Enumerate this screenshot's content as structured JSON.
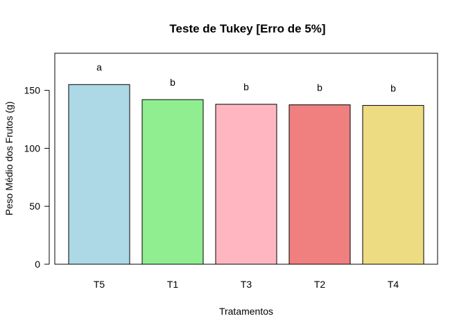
{
  "chart_data": {
    "type": "bar",
    "title": "Teste de Tukey [Erro de 5%]",
    "xlabel": "Tratamentos",
    "ylabel": "Peso Médio dos Frutos (g)",
    "categories": [
      "T5",
      "T1",
      "T3",
      "T2",
      "T4"
    ],
    "values": [
      155,
      142,
      138,
      137.5,
      137
    ],
    "group_letters": [
      "a",
      "b",
      "b",
      "b",
      "b"
    ],
    "colors": [
      "#ADD8E6",
      "#90EE90",
      "#FFB6C1",
      "#F08080",
      "#EEDC82"
    ],
    "ylim": [
      0,
      182
    ],
    "yticks": [
      0,
      50,
      100,
      150
    ],
    "grid": false,
    "legend": "none"
  }
}
